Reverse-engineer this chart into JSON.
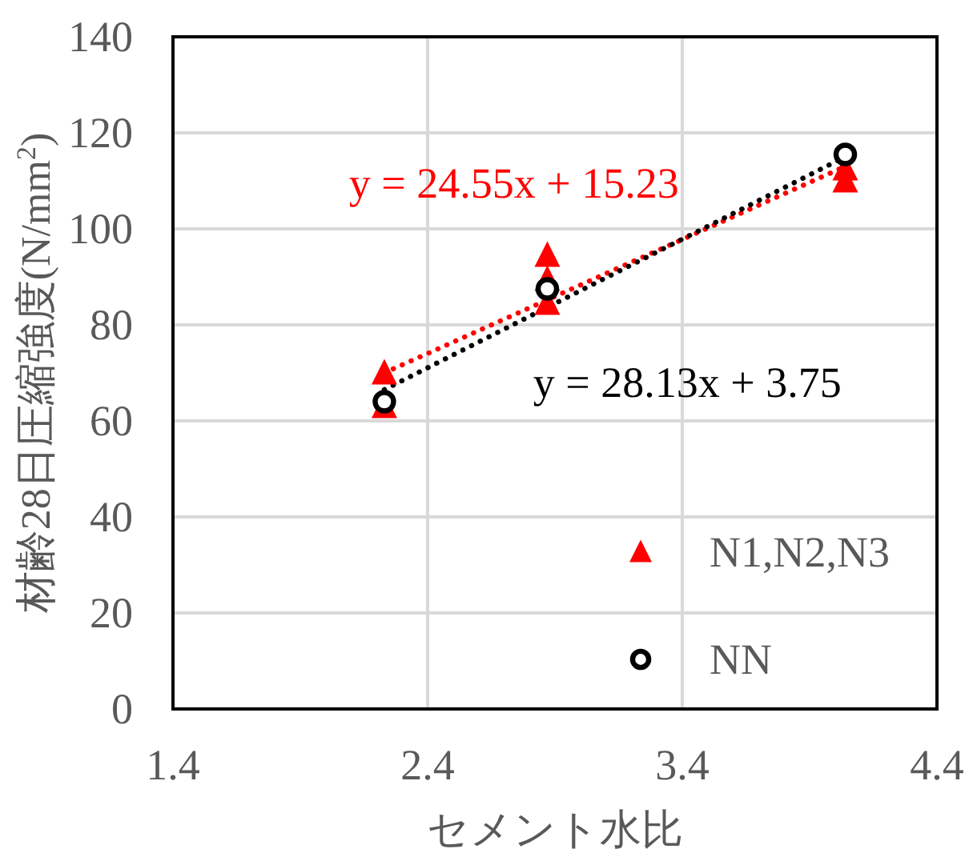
{
  "chart_data": {
    "type": "scatter",
    "xlabel": "セメント水比",
    "ylabel": "材齢28日圧縮強度(N/mm$^{2}$)",
    "xlim": [
      1.4,
      4.4
    ],
    "xticks": [
      1.4,
      2.4,
      3.4,
      4.4
    ],
    "ylim": [
      0,
      140
    ],
    "yticks": [
      0,
      20,
      40,
      60,
      80,
      100,
      120,
      140
    ],
    "grid": true,
    "legend": "bottom right",
    "series": [
      {
        "name": "N1,N2,N3",
        "marker": "triangle",
        "color": "#ff0000",
        "x": [
          2.23,
          2.23,
          2.87,
          2.87,
          2.87,
          4.04,
          4.04
        ],
        "values": [
          70,
          63,
          94.5,
          89.5,
          84.5,
          112.5,
          110
        ]
      },
      {
        "name": "NN",
        "marker": "circle",
        "color": "#000000",
        "x": [
          2.23,
          2.87,
          4.04
        ],
        "values": [
          64,
          87.5,
          115.5
        ]
      },
      {
        "name": "y = 24.55x + 15.23",
        "type": "line",
        "marker": "none",
        "line_style": "dotted",
        "color": "#ff0000",
        "x": [
          2.23,
          4.04
        ],
        "values": [
          70,
          113
        ]
      },
      {
        "name": "y = 28.13x + 3.75",
        "type": "line",
        "marker": "none",
        "line_style": "dotted",
        "color": "#000000",
        "x": [
          2.23,
          4.04
        ],
        "values": [
          66.5,
          115
        ]
      }
    ]
  }
}
